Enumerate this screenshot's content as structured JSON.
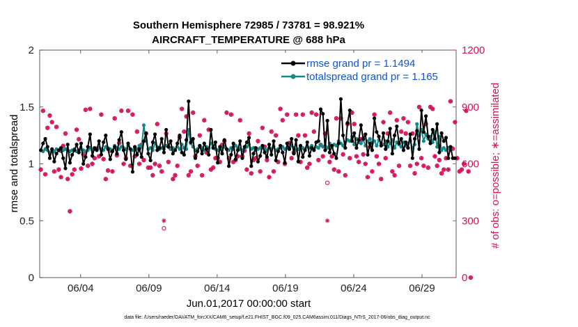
{
  "chart_data": {
    "type": "line",
    "title": "Southern Hemisphere 72985 / 73781 = 98.921%",
    "subtitle": "AIRCRAFT_TEMPERATURE @ 688 hPa",
    "xlabel": "Jun.01,2017 00:00:00 start",
    "ylabel": "rmse and totalspread",
    "ylabel_right": "# of obs: o=possible; ∗=assimilated",
    "ylim": [
      0,
      2
    ],
    "ylim_right": [
      0,
      1200
    ],
    "xlim": [
      0,
      30.5
    ],
    "x_ticks": [
      3,
      8,
      13,
      18,
      23,
      28
    ],
    "x_tick_labels": [
      "06/04",
      "06/09",
      "06/14",
      "06/19",
      "06/24",
      "06/29"
    ],
    "y_ticks": [
      0,
      0.5,
      1,
      1.5,
      2
    ],
    "y_tick_labels": [
      "0",
      "0.5",
      "1",
      "1.5",
      "2"
    ],
    "y_ticks_right": [
      0,
      300,
      600,
      900,
      1200
    ],
    "y_tick_labels_right": [
      "0",
      "300",
      "600",
      "900",
      "1200"
    ],
    "footnote": "data file: /Users/raeder/DAI/ATM_forcXX/CAM6_setup/f.e21.FHIST_BGC.f09_025.CAM6assim.011/Diags_NTrS_2017-06/obs_diag_output.nc",
    "colors": {
      "rmse": "#000000",
      "spread": "#138a8a",
      "obs": "#d40f5a",
      "legend_text": "#0d55d8"
    },
    "series": [
      {
        "name": "rmse grand pr = 1.1494",
        "values": [
          1.12,
          1.18,
          1.22,
          1.15,
          1.05,
          1.13,
          1.02,
          1.09,
          1.12,
          1.14,
          1.05,
          0.96,
          1.17,
          1.01,
          1.08,
          1.12,
          1.17,
          1.1,
          1.18,
          1.0,
          1.06,
          1.15,
          1.26,
          1.07,
          1.14,
          1.12,
          1.2,
          1.08,
          1.19,
          1.25,
          1.13,
          1.04,
          1.11,
          1.15,
          1.09,
          1.21,
          1.28,
          1.12,
          1.04,
          1.18,
          1.13,
          0.93,
          1.15,
          1.08,
          1.13,
          1.06,
          1.2,
          1.27,
          1.09,
          1.03,
          1.19,
          1.26,
          1.12,
          1.14,
          1.22,
          1.1,
          1.3,
          1.15,
          1.2,
          1.09,
          1.12,
          1.18,
          1.25,
          1.1,
          1.08,
          1.21,
          1.55,
          1.19,
          1.22,
          1.05,
          1.11,
          1.16,
          1.09,
          1.18,
          1.13,
          1.08,
          1.3,
          1.14,
          1.19,
          1.01,
          1.15,
          1.09,
          1.21,
          1.13,
          0.98,
          1.08,
          1.18,
          1.04,
          1.12,
          1.2,
          1.05,
          1.15,
          1.19,
          1.23,
          0.98,
          1.09,
          1.14,
          1.02,
          1.07,
          1.16,
          1.1,
          1.06,
          1.17,
          1.08,
          1.2,
          1.03,
          1.11,
          1.16,
          1.1,
          1.01,
          1.18,
          1.13,
          1.22,
          1.09,
          1.21,
          1.02,
          1.16,
          1.06,
          1.12,
          1.19,
          1.07,
          1.14,
          1.12,
          1.19,
          1.2,
          1.48,
          1.44,
          1.12,
          1.38,
          1.1,
          1.16,
          1.09,
          1.05,
          1.18,
          1.57,
          1.25,
          1.14,
          1.36,
          1.47,
          1.2,
          1.27,
          1.14,
          1.21,
          1.34,
          1.22,
          1.26,
          1.08,
          1.18,
          1.12,
          1.4,
          1.28,
          1.24,
          1.16,
          1.27,
          1.13,
          1.2,
          1.31,
          1.09,
          1.25,
          1.33,
          1.18,
          1.22,
          1.12,
          1.19,
          1.14,
          1.26,
          1.05,
          1.22,
          1.29,
          1.13,
          1.47,
          1.28,
          1.42,
          1.24,
          1.18,
          1.3,
          1.22,
          1.35,
          1.1,
          1.27,
          1.2,
          1.23,
          1.05,
          1.15,
          1.05,
          1.05
        ]
      },
      {
        "name": "totalspread grand pr = 1.165",
        "values": [
          1.12,
          1.11,
          1.13,
          1.12,
          1.1,
          1.12,
          1.11,
          1.13,
          1.12,
          1.11,
          1.12,
          1.13,
          1.12,
          1.11,
          1.12,
          1.13,
          1.11,
          1.12,
          1.13,
          1.12,
          1.11,
          1.12,
          1.14,
          1.12,
          1.13,
          1.12,
          1.14,
          1.13,
          1.12,
          1.15,
          1.14,
          1.13,
          1.12,
          1.16,
          1.14,
          1.13,
          1.15,
          1.14,
          1.13,
          1.16,
          1.13,
          1.12,
          1.14,
          1.13,
          1.16,
          1.15,
          1.34,
          1.2,
          1.13,
          1.14,
          1.12,
          1.18,
          1.15,
          1.13,
          1.14,
          1.13,
          1.16,
          1.15,
          1.13,
          1.14,
          1.12,
          1.15,
          1.13,
          1.17,
          1.14,
          1.13,
          1.3,
          1.18,
          1.15,
          1.12,
          1.13,
          1.16,
          1.14,
          1.12,
          1.15,
          1.14,
          1.18,
          1.15,
          1.13,
          1.12,
          1.13,
          1.14,
          1.15,
          1.13,
          1.12,
          1.14,
          1.13,
          1.16,
          1.14,
          1.13,
          1.12,
          1.14,
          1.15,
          1.17,
          1.13,
          1.14,
          1.12,
          1.13,
          1.14,
          1.15,
          1.13,
          1.12,
          1.14,
          1.13,
          1.15,
          1.12,
          1.13,
          1.14,
          1.15,
          1.13,
          1.14,
          1.13,
          1.16,
          1.14,
          1.12,
          1.13,
          1.15,
          1.14,
          1.13,
          1.15,
          1.14,
          1.16,
          1.13,
          1.15,
          1.14,
          1.17,
          1.15,
          1.16,
          1.14,
          1.18,
          1.15,
          1.17,
          1.16,
          1.2,
          1.18,
          1.16,
          1.19,
          1.21,
          1.2,
          1.24,
          1.17,
          1.22,
          1.19,
          1.18,
          1.21,
          1.16,
          1.2,
          1.22,
          1.18,
          1.2,
          1.16,
          1.21,
          1.18,
          1.17,
          1.2,
          1.15,
          1.18,
          1.21,
          1.14,
          1.19,
          1.17,
          1.15,
          1.19,
          1.16,
          1.18,
          1.2,
          1.14,
          1.17,
          1.35,
          1.25,
          1.3,
          1.2,
          1.26,
          1.22,
          1.24,
          1.19,
          1.28,
          1.15,
          1.24,
          1.12,
          1.14,
          1.12,
          1.14,
          1.12
        ]
      },
      {
        "name": "obs possible",
        "values": [
          570,
          880,
          545,
          790,
          855,
          820,
          560,
          795,
          570,
          530,
          695,
          760,
          520,
          350,
          545,
          570,
          780,
          730,
          575,
          650,
          885,
          590,
          890,
          600,
          630,
          680,
          640,
          860,
          625,
          520,
          565,
          670,
          560,
          840,
          645,
          710,
          880,
          600,
          630,
          880,
          590,
          860,
          640,
          770,
          600,
          700,
          620,
          760,
          580,
          580,
          540,
          600,
          810,
          590,
          560,
          260,
          760,
          610,
          680,
          520,
          540,
          590,
          740,
          890,
          770,
          850,
          540,
          560,
          870,
          640,
          590,
          750,
          540,
          830,
          660,
          780,
          570,
          580,
          630,
          630,
          610,
          700,
          720,
          870,
          630,
          860,
          610,
          620,
          640,
          830,
          640,
          670,
          570,
          760,
          550,
          620,
          630,
          720,
          560,
          790,
          690,
          620,
          530,
          770,
          560,
          750,
          610,
          890,
          830,
          600,
          860,
          710,
          630,
          660,
          860,
          750,
          610,
          860,
          750,
          580,
          600,
          870,
          770,
          860,
          620,
          700,
          640,
          760,
          500,
          610,
          640,
          570,
          840,
          560,
          840,
          650,
          540,
          810,
          630,
          870,
          810,
          640,
          610,
          730,
          650,
          600,
          530,
          690,
          560,
          860,
          640,
          600,
          520,
          820,
          630,
          760,
          870,
          560,
          540,
          830,
          590,
          770,
          840,
          760,
          820,
          590,
          760,
          550,
          600,
          900,
          630,
          590,
          810,
          580,
          900,
          890,
          640,
          590,
          620,
          550,
          570,
          630,
          570,
          930,
          680,
          820,
          630,
          560,
          570,
          600,
          880,
          560,
          0
        ]
      },
      {
        "name": "obs assimilated",
        "values": [
          570,
          880,
          545,
          790,
          855,
          820,
          560,
          795,
          570,
          530,
          695,
          760,
          520,
          350,
          545,
          570,
          780,
          730,
          575,
          650,
          885,
          590,
          890,
          600,
          630,
          680,
          640,
          860,
          625,
          520,
          565,
          670,
          560,
          840,
          645,
          710,
          880,
          600,
          630,
          880,
          590,
          860,
          640,
          770,
          600,
          700,
          620,
          760,
          580,
          580,
          540,
          600,
          810,
          590,
          560,
          300,
          760,
          610,
          680,
          520,
          540,
          590,
          740,
          890,
          770,
          850,
          540,
          560,
          870,
          640,
          590,
          750,
          540,
          830,
          660,
          780,
          570,
          580,
          630,
          630,
          610,
          700,
          720,
          870,
          630,
          860,
          610,
          620,
          640,
          830,
          640,
          670,
          570,
          760,
          550,
          620,
          630,
          720,
          560,
          790,
          690,
          620,
          530,
          770,
          560,
          750,
          610,
          890,
          830,
          600,
          860,
          710,
          630,
          660,
          860,
          750,
          610,
          860,
          750,
          580,
          600,
          870,
          770,
          860,
          620,
          700,
          640,
          760,
          300,
          610,
          640,
          570,
          840,
          560,
          840,
          650,
          540,
          810,
          630,
          870,
          810,
          640,
          610,
          730,
          650,
          600,
          530,
          690,
          560,
          860,
          640,
          600,
          520,
          820,
          630,
          760,
          870,
          560,
          540,
          830,
          590,
          770,
          840,
          760,
          820,
          590,
          760,
          550,
          600,
          900,
          630,
          590,
          810,
          580,
          900,
          890,
          640,
          590,
          620,
          550,
          570,
          630,
          570,
          930,
          680,
          820,
          630,
          560,
          570,
          600,
          880,
          560,
          0
        ]
      }
    ]
  }
}
